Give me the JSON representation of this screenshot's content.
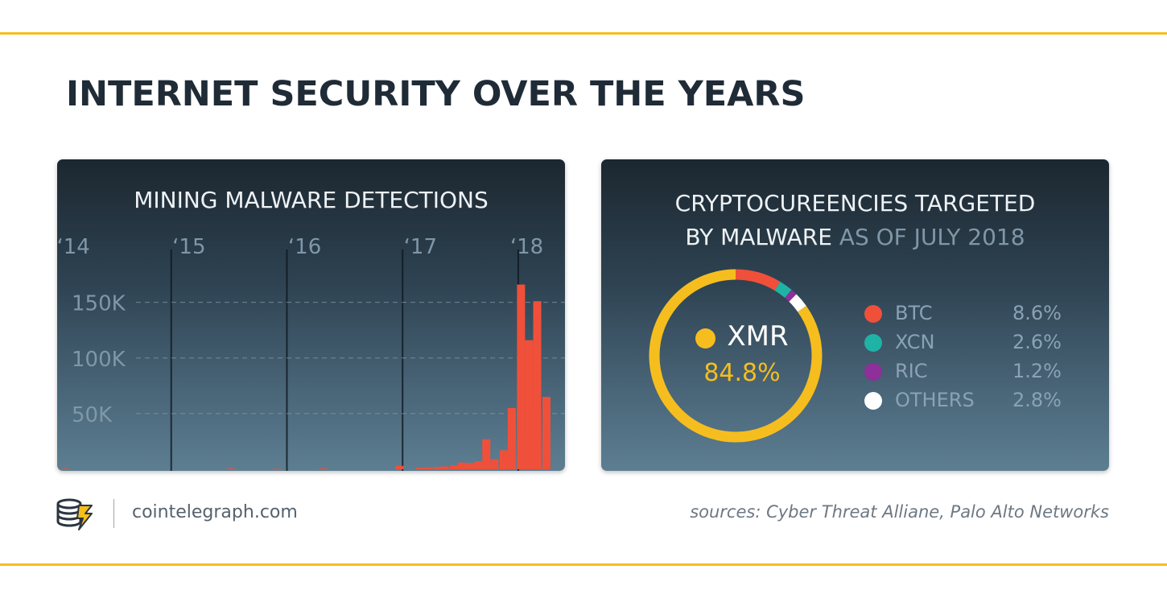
{
  "title": "INTERNET SECURITY OVER THE YEARS",
  "colors": {
    "accent": "#f5be1e",
    "bar": "#f0503a",
    "btc": "#f0503a",
    "xcn": "#1fb3a6",
    "ric": "#8e2f9a",
    "others": "#ffffff",
    "xmr": "#f5be1e"
  },
  "left_panel": {
    "title": "MINING MALWARE DETECTIONS"
  },
  "right_panel": {
    "title_main_line1": "CRYPTOCUREENCIES TARGETED",
    "title_main_line2": "BY MALWARE",
    "title_muted": "AS OF JULY 2018",
    "center_symbol": "XMR",
    "center_value": "84.8%"
  },
  "footer": {
    "site": "cointelegraph.com",
    "sources": "sources: Cyber Threat Alliane, Palo Alto Networks",
    "logo_icon": "cointelegraph-logo-icon"
  },
  "chart_data": [
    {
      "type": "bar",
      "title": "MINING MALWARE DETECTIONS",
      "x_labels": [
        "‘14",
        "‘15",
        "‘16",
        "‘17",
        "‘18"
      ],
      "y_ticks": [
        "50K",
        "100K",
        "150K"
      ],
      "y_tick_values": [
        50000,
        100000,
        150000
      ],
      "ylim": [
        0,
        170000
      ],
      "grid": true,
      "bars": [
        {
          "x": 2014.07,
          "value": 500
        },
        {
          "x": 2015.5,
          "value": 600
        },
        {
          "x": 2015.9,
          "value": 400
        },
        {
          "x": 2016.3,
          "value": 600
        },
        {
          "x": 2016.96,
          "value": 3000
        },
        {
          "x": 2017.13,
          "value": 1200
        },
        {
          "x": 2017.2,
          "value": 1500
        },
        {
          "x": 2017.28,
          "value": 2000
        },
        {
          "x": 2017.35,
          "value": 2500
        },
        {
          "x": 2017.43,
          "value": 3500
        },
        {
          "x": 2017.5,
          "value": 6000
        },
        {
          "x": 2017.57,
          "value": 5500
        },
        {
          "x": 2017.64,
          "value": 7000
        },
        {
          "x": 2017.71,
          "value": 27000
        },
        {
          "x": 2017.78,
          "value": 9000
        },
        {
          "x": 2017.86,
          "value": 17000
        },
        {
          "x": 2017.93,
          "value": 55000
        },
        {
          "x": 2018.01,
          "value": 166000
        },
        {
          "x": 2018.08,
          "value": 116000
        },
        {
          "x": 2018.15,
          "value": 151000
        },
        {
          "x": 2018.23,
          "value": 65000
        }
      ]
    },
    {
      "type": "pie",
      "title": "CRYPTOCUREENCIES TARGETED BY MALWARE AS OF JULY 2018",
      "donut": true,
      "slices": [
        {
          "label": "XMR",
          "value": 84.8,
          "display": "84.8%",
          "color": "#f5be1e"
        },
        {
          "label": "BTC",
          "value": 8.6,
          "display": "8.6%",
          "color": "#f0503a"
        },
        {
          "label": "XCN",
          "value": 2.6,
          "display": "2.6%",
          "color": "#1fb3a6"
        },
        {
          "label": "RIC",
          "value": 1.2,
          "display": "1.2%",
          "color": "#8e2f9a"
        },
        {
          "label": "OTHERS",
          "value": 2.8,
          "display": "2.8%",
          "color": "#ffffff"
        }
      ]
    }
  ]
}
